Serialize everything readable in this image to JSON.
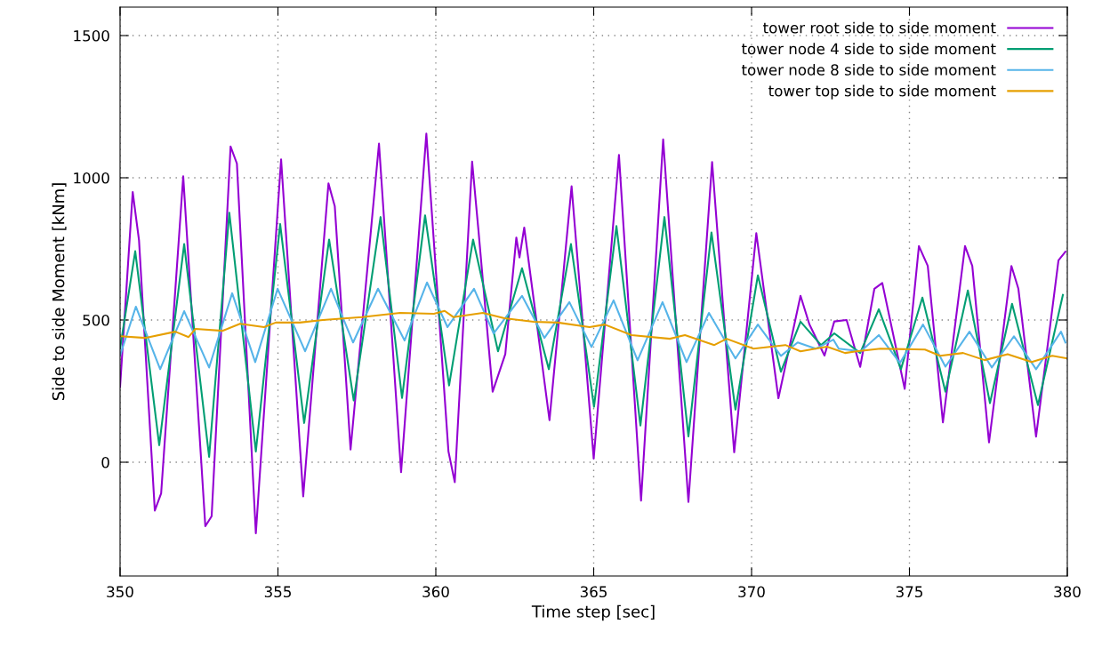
{
  "chart_data": {
    "type": "line",
    "xlabel": "Time step [sec]",
    "ylabel": "Side to side Moment [kNm]",
    "xlim": [
      350,
      380
    ],
    "ylim": [
      -400,
      1600
    ],
    "xticks": [
      350,
      355,
      360,
      365,
      370,
      375,
      380
    ],
    "yticks": [
      0,
      500,
      1000,
      1500
    ],
    "grid": true,
    "legend": "top right",
    "line_style": "solid",
    "marker": "none",
    "series": [
      {
        "name": "tower root side to side moment",
        "color": "#9400d3",
        "x": [
          350,
          350.4,
          350.6,
          351.1,
          351.3,
          352.0,
          352.7,
          352.9,
          353.5,
          353.7,
          354.3,
          355.1,
          355.8,
          356.6,
          356.8,
          357.3,
          358.2,
          358.9,
          359.7,
          360.4,
          360.6,
          361.15,
          361.35,
          361.8,
          362.2,
          362.55,
          362.65,
          362.8,
          363.6,
          364.3,
          365.0,
          365.8,
          366.5,
          367.2,
          368.0,
          368.75,
          369.45,
          370.15,
          370.85,
          371.55,
          371.83,
          372.31,
          372.62,
          373.01,
          373.44,
          373.89,
          374.14,
          374.85,
          375.3,
          375.58,
          376.06,
          376.76,
          376.99,
          377.52,
          378.23,
          378.45,
          379.01,
          379.72,
          379.94
        ],
        "values": [
          265,
          950,
          780,
          -170,
          -110,
          1005,
          -225,
          -190,
          1110,
          1050,
          -250,
          1065,
          -120,
          980,
          900,
          45,
          1120,
          -35,
          1155,
          38,
          -70,
          1057,
          815,
          248,
          380,
          790,
          720,
          825,
          148,
          970,
          13,
          1080,
          -135,
          1135,
          -140,
          1055,
          35,
          805,
          225,
          585,
          485,
          375,
          495,
          500,
          335,
          610,
          630,
          258,
          760,
          690,
          140,
          760,
          690,
          70,
          690,
          610,
          90,
          710,
          740
        ]
      },
      {
        "name": "tower node 4 side to side moment",
        "color": "#009e73",
        "x": [
          350,
          350.48,
          351.24,
          352.03,
          352.82,
          353.46,
          354.3,
          355.07,
          355.83,
          356.62,
          357.4,
          358.25,
          358.93,
          359.66,
          360.42,
          361.18,
          361.97,
          362.73,
          363.58,
          364.28,
          365.01,
          365.72,
          366.48,
          367.24,
          368.0,
          368.73,
          369.49,
          370.2,
          370.93,
          371.55,
          372.2,
          372.62,
          373.44,
          374.03,
          374.73,
          375.41,
          376.14,
          376.85,
          377.55,
          378.25,
          379.07,
          379.86
        ],
        "values": [
          400,
          742,
          60,
          767,
          19,
          877,
          38,
          837,
          138,
          783,
          217,
          862,
          226,
          868,
          270,
          783,
          390,
          682,
          327,
          767,
          195,
          830,
          129,
          862,
          91,
          808,
          185,
          657,
          318,
          494,
          412,
          453,
          384,
          538,
          327,
          579,
          248,
          604,
          208,
          557,
          201,
          588
        ]
      },
      {
        "name": "tower node 8 side to side moment",
        "color": "#56b4e9",
        "x": [
          350,
          350.5,
          351.27,
          352.03,
          352.82,
          353.55,
          354.28,
          354.99,
          355.86,
          356.68,
          357.38,
          358.17,
          359.01,
          359.72,
          360.37,
          361.21,
          361.83,
          362.73,
          363.44,
          364.23,
          364.93,
          365.63,
          366.39,
          367.18,
          367.94,
          368.65,
          369.49,
          370.2,
          370.93,
          371.46,
          372.03,
          372.59,
          372.76,
          373.46,
          374.03,
          374.7,
          375.43,
          376.14,
          376.9,
          377.61,
          378.31,
          379.01,
          379.8,
          379.94
        ],
        "values": [
          375,
          547,
          327,
          531,
          333,
          594,
          352,
          610,
          390,
          610,
          421,
          610,
          428,
          632,
          475,
          610,
          453,
          585,
          437,
          563,
          405,
          569,
          358,
          563,
          352,
          525,
          365,
          484,
          374,
          421,
          399,
          431,
          399,
          390,
          447,
          349,
          484,
          336,
          459,
          333,
          443,
          327,
          459,
          421
        ]
      },
      {
        "name": "tower top side to side moment",
        "color": "#e69f00",
        "x": [
          350,
          350.79,
          351.75,
          352.17,
          352.39,
          353.24,
          353.8,
          354.56,
          354.93,
          355.69,
          356.42,
          357.66,
          358.87,
          359.94,
          360.28,
          360.56,
          361.49,
          362.17,
          363.1,
          363.86,
          364.87,
          365.35,
          366.2,
          367.41,
          367.89,
          368.82,
          369.21,
          370.06,
          371.07,
          371.55,
          372.39,
          372.96,
          373.32,
          374.08,
          375.49,
          375.97,
          376.7,
          377.38,
          378.11,
          378.87,
          379.52,
          380
        ],
        "values": [
          443,
          437,
          459,
          440,
          469,
          462,
          487,
          475,
          491,
          491,
          500,
          510,
          525,
          522,
          532,
          510,
          525,
          506,
          494,
          491,
          475,
          484,
          447,
          434,
          447,
          412,
          434,
          399,
          412,
          390,
          406,
          384,
          390,
          399,
          396,
          374,
          384,
          359,
          380,
          352,
          374,
          365
        ]
      }
    ]
  }
}
